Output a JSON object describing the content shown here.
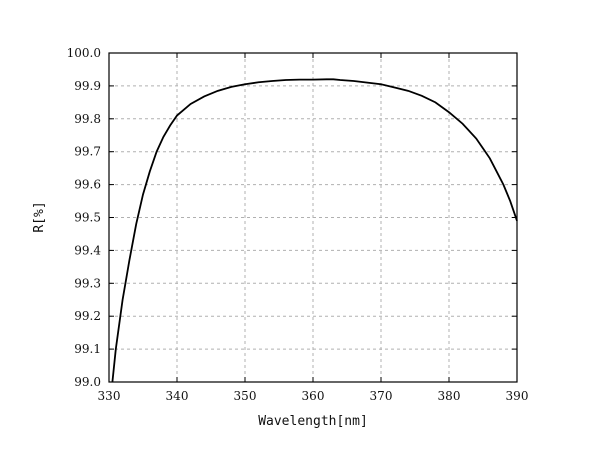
{
  "chart_data": {
    "type": "line",
    "title": "",
    "xlabel": "Wavelength[nm]",
    "ylabel": "R[%]",
    "xlim": [
      330,
      390
    ],
    "ylim": [
      99.0,
      100.0
    ],
    "xticks": [
      "330",
      "340",
      "350",
      "360",
      "370",
      "380",
      "390"
    ],
    "yticks": [
      "99.0",
      "99.1",
      "99.2",
      "99.3",
      "99.4",
      "99.5",
      "99.6",
      "99.7",
      "99.8",
      "99.9",
      "100.0"
    ],
    "grid": true,
    "legend": "none",
    "line_color": "#000000",
    "series": [
      {
        "x": [
          330.5,
          331,
          332,
          333,
          334,
          335,
          336,
          337,
          338,
          339,
          340,
          342,
          344,
          346,
          348,
          350,
          352,
          354,
          356,
          358,
          360,
          362,
          363,
          364,
          366,
          368,
          370,
          372,
          374,
          376,
          378,
          380,
          382,
          384,
          385,
          386,
          387,
          388,
          389,
          390
        ],
        "y": [
          99.0,
          99.1,
          99.25,
          99.37,
          99.48,
          99.57,
          99.64,
          99.7,
          99.745,
          99.78,
          99.81,
          99.845,
          99.868,
          99.885,
          99.897,
          99.905,
          99.911,
          99.915,
          99.918,
          99.919,
          99.919,
          99.92,
          99.92,
          99.918,
          99.915,
          99.91,
          99.905,
          99.895,
          99.885,
          99.87,
          99.85,
          99.82,
          99.785,
          99.74,
          99.71,
          99.68,
          99.64,
          99.6,
          99.55,
          99.49
        ]
      }
    ]
  }
}
